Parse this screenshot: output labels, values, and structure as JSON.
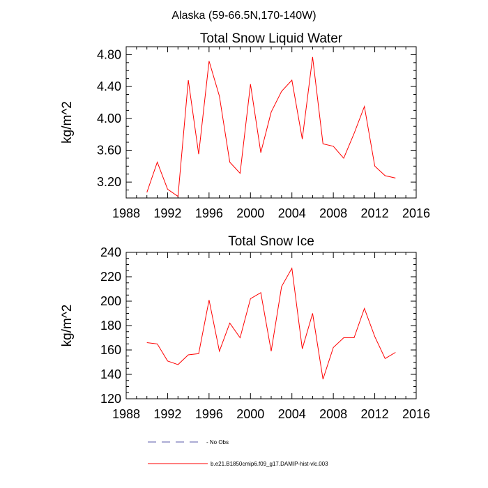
{
  "suptitle": "Alaska (59-66.5N,170-140W)",
  "chart_data": [
    {
      "type": "line",
      "title": "Total Snow Liquid Water",
      "xlabel": "",
      "ylabel": "kg/m^2",
      "xlim": [
        1988,
        2016
      ],
      "ylim": [
        3.0,
        4.9
      ],
      "xticks": [
        1988,
        1992,
        1996,
        2000,
        2004,
        2008,
        2012,
        2016
      ],
      "xtick_labels": [
        "1988",
        "1992",
        "1996",
        "2000",
        "2004",
        "2008",
        "2012",
        "2016"
      ],
      "yticks": [
        3.2,
        3.6,
        4.0,
        4.4,
        4.8
      ],
      "ytick_labels": [
        "3.20",
        "3.60",
        "4.00",
        "4.40",
        "4.80"
      ],
      "grid": false,
      "series": [
        {
          "name": "b.e21.B1850cmip6.f09_g17.DAMIP-hist-vlc.003",
          "color": "#ff0000",
          "x": [
            1990,
            1991,
            1992,
            1993,
            1994,
            1995,
            1996,
            1997,
            1998,
            1999,
            2000,
            2001,
            2002,
            2003,
            2004,
            2005,
            2006,
            2007,
            2008,
            2009,
            2010,
            2011,
            2012,
            2013,
            2014
          ],
          "y": [
            3.07,
            3.45,
            3.11,
            3.02,
            4.48,
            3.55,
            4.72,
            4.28,
            3.45,
            3.31,
            4.43,
            3.57,
            4.08,
            4.34,
            4.48,
            3.74,
            4.77,
            3.68,
            3.65,
            3.5,
            3.81,
            4.15,
            3.4,
            3.28,
            3.25
          ]
        }
      ]
    },
    {
      "type": "line",
      "title": "Total Snow Ice",
      "xlabel": "",
      "ylabel": "kg/m^2",
      "xlim": [
        1988,
        2016
      ],
      "ylim": [
        120,
        240
      ],
      "xticks": [
        1988,
        1992,
        1996,
        2000,
        2004,
        2008,
        2012,
        2016
      ],
      "xtick_labels": [
        "1988",
        "1992",
        "1996",
        "2000",
        "2004",
        "2008",
        "2012",
        "2016"
      ],
      "yticks": [
        120,
        140,
        160,
        180,
        200,
        220,
        240
      ],
      "ytick_labels": [
        "120",
        "140",
        "160",
        "180",
        "200",
        "220",
        "240"
      ],
      "grid": false,
      "series": [
        {
          "name": "b.e21.B1850cmip6.f09_g17.DAMIP-hist-vlc.003",
          "color": "#ff0000",
          "x": [
            1990,
            1991,
            1992,
            1993,
            1994,
            1995,
            1996,
            1997,
            1998,
            1999,
            2000,
            2001,
            2002,
            2003,
            2004,
            2005,
            2006,
            2007,
            2008,
            2009,
            2010,
            2011,
            2012,
            2013,
            2014
          ],
          "y": [
            166,
            165,
            151,
            148,
            156,
            157,
            201,
            159,
            182,
            170,
            202,
            207,
            159,
            212,
            227,
            161,
            190,
            136,
            162,
            170,
            170,
            194,
            171,
            153,
            158
          ]
        }
      ]
    }
  ],
  "legend": {
    "placement": "bottom",
    "items": [
      {
        "label": "No Obs",
        "color": "#5a5aa8",
        "style": "dashed"
      },
      {
        "label": "b.e21.B1850cmip6.f09_g17.DAMIP-hist-vlc.003",
        "color": "#ff0000",
        "style": "solid"
      }
    ]
  }
}
